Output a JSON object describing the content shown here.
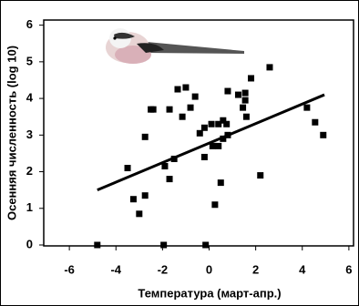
{
  "chart_data": {
    "type": "scatter",
    "x_label": "Температура (март-апр.)",
    "y_label": "Осенняя численность (log 10)",
    "xlim": [
      -7.1,
      6.2
    ],
    "ylim": [
      0,
      6.14
    ],
    "xticks": [
      -6,
      -4,
      -2,
      0,
      2,
      4,
      6
    ],
    "yticks": [
      0,
      1,
      2,
      3,
      4,
      5,
      6
    ],
    "color": "#000000",
    "x": [
      -4.8,
      -1.95,
      -0.15,
      -3.5,
      -3.25,
      -3.0,
      -2.75,
      -2.75,
      -2.5,
      -2.4,
      -1.9,
      -1.7,
      -1.7,
      -1.5,
      -1.35,
      -1.0,
      -1.15,
      -0.8,
      -0.6,
      -0.4,
      -0.2,
      -0.2,
      0.1,
      0.15,
      0.25,
      0.4,
      0.4,
      0.5,
      0.6,
      0.6,
      0.75,
      0.8,
      0.8,
      1.25,
      1.45,
      1.55,
      1.55,
      1.6,
      1.8,
      2.2,
      2.6,
      4.2,
      4.55,
      4.9
    ],
    "y": [
      0,
      0,
      0,
      2.1,
      1.25,
      0.85,
      1.35,
      2.95,
      3.7,
      3.7,
      2.15,
      1.8,
      3.7,
      2.35,
      4.25,
      4.3,
      3.5,
      3.75,
      4.05,
      3.05,
      3.2,
      2.4,
      3.3,
      2.7,
      1.1,
      3.3,
      2.7,
      1.7,
      3.4,
      2.9,
      3.3,
      4.2,
      3.0,
      4.1,
      3.75,
      4.15,
      3.95,
      3.5,
      4.55,
      1.9,
      4.85,
      3.75,
      3.35,
      3.0
    ],
    "fit": {
      "x": [
        -4.8,
        4.95
      ],
      "y": [
        1.5,
        4.1
      ]
    }
  }
}
